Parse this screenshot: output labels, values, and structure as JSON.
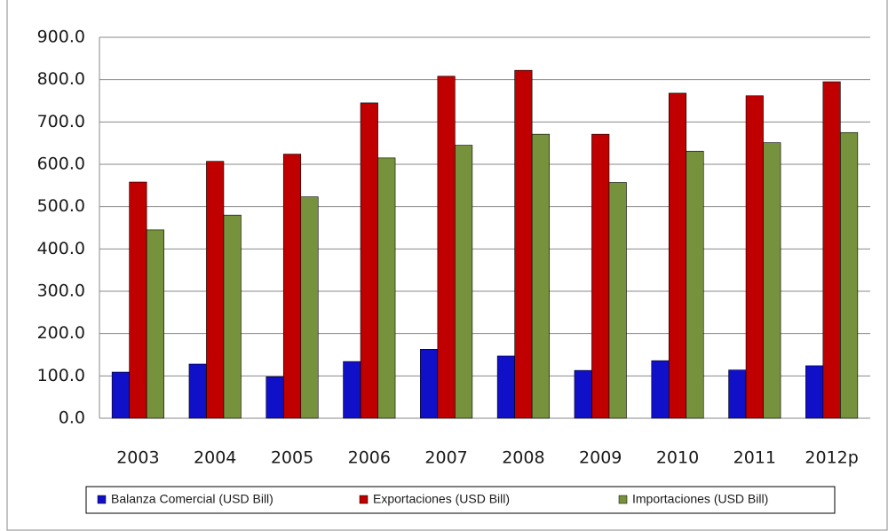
{
  "chart_data": {
    "type": "bar",
    "categories": [
      "2003",
      "2004",
      "2005",
      "2006",
      "2007",
      "2008",
      "2009",
      "2010",
      "2011",
      "2012p"
    ],
    "series": [
      {
        "name": "Balanza Comercial (USD Bill)",
        "color": "#1010c8",
        "values": [
          109,
          128,
          98,
          134,
          163,
          147,
          113,
          136,
          114,
          124
        ]
      },
      {
        "name": "Exportaciones (USD Bill)",
        "color": "#c00000",
        "values": [
          558,
          607,
          624,
          745,
          808,
          822,
          671,
          768,
          762,
          795
        ]
      },
      {
        "name": "Importaciones (USD Bill)",
        "color": "#76923c",
        "values": [
          445,
          480,
          523,
          615,
          645,
          671,
          557,
          631,
          651,
          675
        ]
      }
    ],
    "ylim": [
      0,
      900
    ],
    "yticks": [
      {
        "value": 0,
        "label": "0.0"
      },
      {
        "value": 100,
        "label": "100.0"
      },
      {
        "value": 200,
        "label": "200.0"
      },
      {
        "value": 300,
        "label": "300.0"
      },
      {
        "value": 400,
        "label": "400.0"
      },
      {
        "value": 500,
        "label": "500.0"
      },
      {
        "value": 600,
        "label": "600.0"
      },
      {
        "value": 700,
        "label": "700.0"
      },
      {
        "value": 800,
        "label": "800.0"
      },
      {
        "value": 900,
        "label": "900.0"
      }
    ],
    "grid": true
  }
}
